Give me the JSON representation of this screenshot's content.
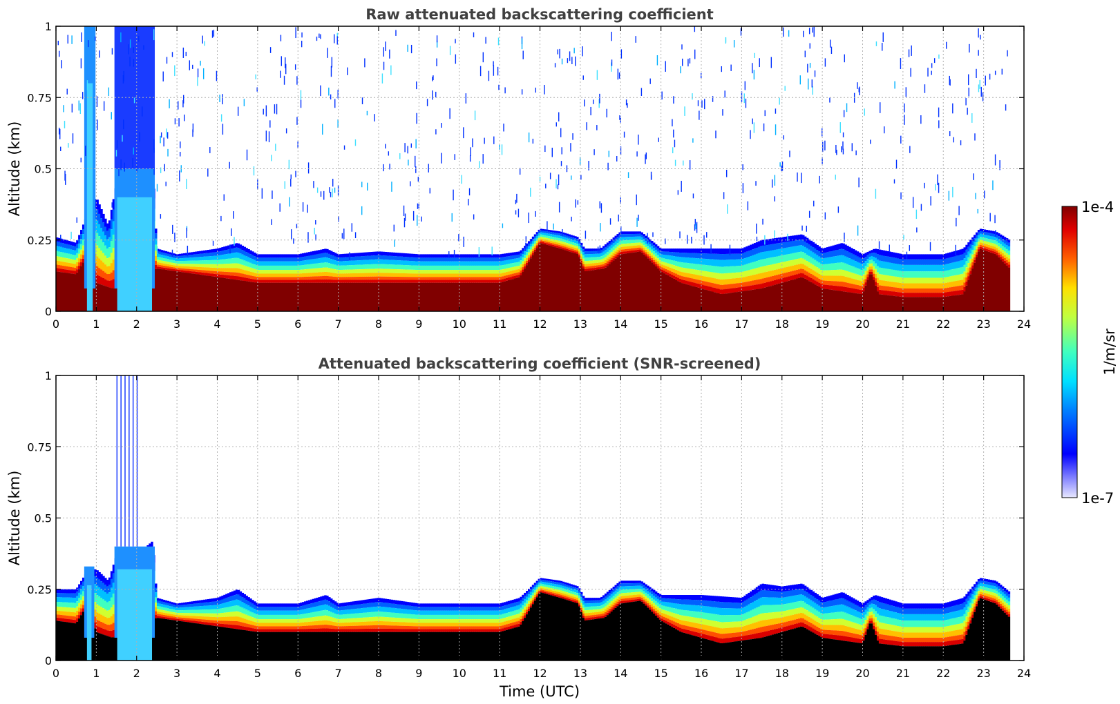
{
  "colorbar": {
    "max_label": "1e-4",
    "min_label": "1e-7",
    "unit_label": "1/m/sr",
    "vmin": 1e-07,
    "vmax": 0.0001,
    "scale": "log",
    "colormap": "jet"
  },
  "chart_data": [
    {
      "type": "heatmap",
      "title": "Raw attenuated backscattering coefficient",
      "xlabel": "",
      "ylabel": "Altitude (km)",
      "xlim": [
        0,
        24
      ],
      "ylim": [
        0,
        1
      ],
      "grid": true,
      "x_ticks": [
        "0",
        "1",
        "2",
        "3",
        "4",
        "5",
        "6",
        "7",
        "8",
        "9",
        "10",
        "11",
        "12",
        "13",
        "14",
        "15",
        "16",
        "17",
        "18",
        "19",
        "20",
        "21",
        "22",
        "23",
        "24"
      ],
      "y_ticks": [
        "0",
        "0.25",
        "0.5",
        "0.75",
        "1"
      ],
      "data_end_hour": 23.65,
      "boundary_layer_top_km": [
        [
          0,
          0.26
        ],
        [
          0.5,
          0.24
        ],
        [
          0.8,
          0.35
        ],
        [
          1.0,
          0.4
        ],
        [
          1.3,
          0.3
        ],
        [
          1.5,
          0.45
        ],
        [
          2.0,
          0.48
        ],
        [
          2.4,
          0.5
        ],
        [
          2.5,
          0.22
        ],
        [
          3,
          0.2
        ],
        [
          4,
          0.22
        ],
        [
          4.5,
          0.24
        ],
        [
          5,
          0.2
        ],
        [
          6,
          0.2
        ],
        [
          6.7,
          0.22
        ],
        [
          7,
          0.2
        ],
        [
          8,
          0.21
        ],
        [
          9,
          0.2
        ],
        [
          10,
          0.2
        ],
        [
          11,
          0.2
        ],
        [
          11.5,
          0.21
        ],
        [
          12,
          0.29
        ],
        [
          12.5,
          0.28
        ],
        [
          12.95,
          0.26
        ],
        [
          13.1,
          0.22
        ],
        [
          13.5,
          0.22
        ],
        [
          14,
          0.28
        ],
        [
          14.5,
          0.28
        ],
        [
          15,
          0.22
        ],
        [
          16,
          0.22
        ],
        [
          17,
          0.22
        ],
        [
          17.5,
          0.25
        ],
        [
          18,
          0.26
        ],
        [
          18.5,
          0.27
        ],
        [
          19,
          0.22
        ],
        [
          19.5,
          0.24
        ],
        [
          20,
          0.2
        ],
        [
          20.3,
          0.22
        ],
        [
          21,
          0.2
        ],
        [
          22,
          0.2
        ],
        [
          22.5,
          0.22
        ],
        [
          22.9,
          0.29
        ],
        [
          23.3,
          0.28
        ],
        [
          23.65,
          0.25
        ]
      ],
      "dense_layer_top_km": [
        [
          0,
          0.14
        ],
        [
          0.5,
          0.13
        ],
        [
          0.8,
          0.2
        ],
        [
          1.0,
          0.1
        ],
        [
          1.4,
          0.08
        ],
        [
          2.5,
          0.15
        ],
        [
          3,
          0.14
        ],
        [
          4,
          0.12
        ],
        [
          5,
          0.1
        ],
        [
          6,
          0.1
        ],
        [
          7,
          0.1
        ],
        [
          8,
          0.1
        ],
        [
          9,
          0.1
        ],
        [
          10,
          0.1
        ],
        [
          11,
          0.1
        ],
        [
          11.5,
          0.12
        ],
        [
          12,
          0.24
        ],
        [
          12.5,
          0.22
        ],
        [
          12.95,
          0.2
        ],
        [
          13.1,
          0.14
        ],
        [
          13.6,
          0.15
        ],
        [
          14,
          0.2
        ],
        [
          14.5,
          0.21
        ],
        [
          15,
          0.14
        ],
        [
          15.5,
          0.1
        ],
        [
          16,
          0.08
        ],
        [
          16.5,
          0.06
        ],
        [
          17,
          0.07
        ],
        [
          17.5,
          0.08
        ],
        [
          18.5,
          0.12
        ],
        [
          19,
          0.08
        ],
        [
          20,
          0.06
        ],
        [
          20.2,
          0.14
        ],
        [
          20.4,
          0.06
        ],
        [
          21,
          0.05
        ],
        [
          22,
          0.05
        ],
        [
          22.5,
          0.06
        ],
        [
          22.9,
          0.22
        ],
        [
          23.3,
          0.2
        ],
        [
          23.65,
          0.15
        ]
      ]
    },
    {
      "type": "heatmap",
      "title": "Attenuated backscattering coefficient (SNR-screened)",
      "xlabel": "Time (UTC)",
      "ylabel": "Altitude (km)",
      "xlim": [
        0,
        24
      ],
      "ylim": [
        0,
        1
      ],
      "grid": true,
      "x_ticks": [
        "0",
        "1",
        "2",
        "3",
        "4",
        "5",
        "6",
        "7",
        "8",
        "9",
        "10",
        "11",
        "12",
        "13",
        "14",
        "15",
        "16",
        "17",
        "18",
        "19",
        "20",
        "21",
        "22",
        "23",
        "24"
      ],
      "y_ticks": [
        "0",
        "0.25",
        "0.5",
        "0.75",
        "1"
      ],
      "data_end_hour": 23.65,
      "boundary_layer_top_km": [
        [
          0,
          0.25
        ],
        [
          0.5,
          0.25
        ],
        [
          0.8,
          0.32
        ],
        [
          1.0,
          0.32
        ],
        [
          1.3,
          0.28
        ],
        [
          1.5,
          0.37
        ],
        [
          2.0,
          0.37
        ],
        [
          2.4,
          0.42
        ],
        [
          2.5,
          0.22
        ],
        [
          3,
          0.2
        ],
        [
          4,
          0.22
        ],
        [
          4.5,
          0.25
        ],
        [
          5,
          0.2
        ],
        [
          6,
          0.2
        ],
        [
          6.7,
          0.23
        ],
        [
          7,
          0.2
        ],
        [
          8,
          0.22
        ],
        [
          9,
          0.2
        ],
        [
          10,
          0.2
        ],
        [
          11,
          0.2
        ],
        [
          11.5,
          0.22
        ],
        [
          12,
          0.29
        ],
        [
          12.5,
          0.28
        ],
        [
          12.95,
          0.26
        ],
        [
          13.1,
          0.22
        ],
        [
          13.5,
          0.22
        ],
        [
          14,
          0.28
        ],
        [
          14.5,
          0.28
        ],
        [
          15,
          0.23
        ],
        [
          16,
          0.23
        ],
        [
          17,
          0.22
        ],
        [
          17.5,
          0.27
        ],
        [
          18,
          0.26
        ],
        [
          18.5,
          0.27
        ],
        [
          19,
          0.22
        ],
        [
          19.5,
          0.24
        ],
        [
          20,
          0.2
        ],
        [
          20.3,
          0.23
        ],
        [
          21,
          0.2
        ],
        [
          22,
          0.2
        ],
        [
          22.5,
          0.22
        ],
        [
          22.9,
          0.29
        ],
        [
          23.3,
          0.28
        ],
        [
          23.65,
          0.24
        ]
      ],
      "dense_layer_top_km": [
        [
          0,
          0.14
        ],
        [
          0.5,
          0.13
        ],
        [
          0.8,
          0.2
        ],
        [
          1.0,
          0.1
        ],
        [
          1.4,
          0.08
        ],
        [
          2.5,
          0.15
        ],
        [
          3,
          0.14
        ],
        [
          4,
          0.12
        ],
        [
          5,
          0.1
        ],
        [
          6,
          0.1
        ],
        [
          7,
          0.1
        ],
        [
          8,
          0.1
        ],
        [
          9,
          0.1
        ],
        [
          10,
          0.1
        ],
        [
          11,
          0.1
        ],
        [
          11.5,
          0.12
        ],
        [
          12,
          0.24
        ],
        [
          12.5,
          0.22
        ],
        [
          12.95,
          0.2
        ],
        [
          13.1,
          0.14
        ],
        [
          13.6,
          0.15
        ],
        [
          14,
          0.2
        ],
        [
          14.5,
          0.21
        ],
        [
          15,
          0.14
        ],
        [
          15.5,
          0.1
        ],
        [
          16,
          0.08
        ],
        [
          16.5,
          0.06
        ],
        [
          17,
          0.07
        ],
        [
          17.5,
          0.08
        ],
        [
          18.5,
          0.12
        ],
        [
          19,
          0.08
        ],
        [
          20,
          0.06
        ],
        [
          20.2,
          0.14
        ],
        [
          20.4,
          0.06
        ],
        [
          21,
          0.05
        ],
        [
          22,
          0.05
        ],
        [
          22.5,
          0.06
        ],
        [
          22.9,
          0.22
        ],
        [
          23.3,
          0.2
        ],
        [
          23.65,
          0.15
        ]
      ]
    }
  ]
}
